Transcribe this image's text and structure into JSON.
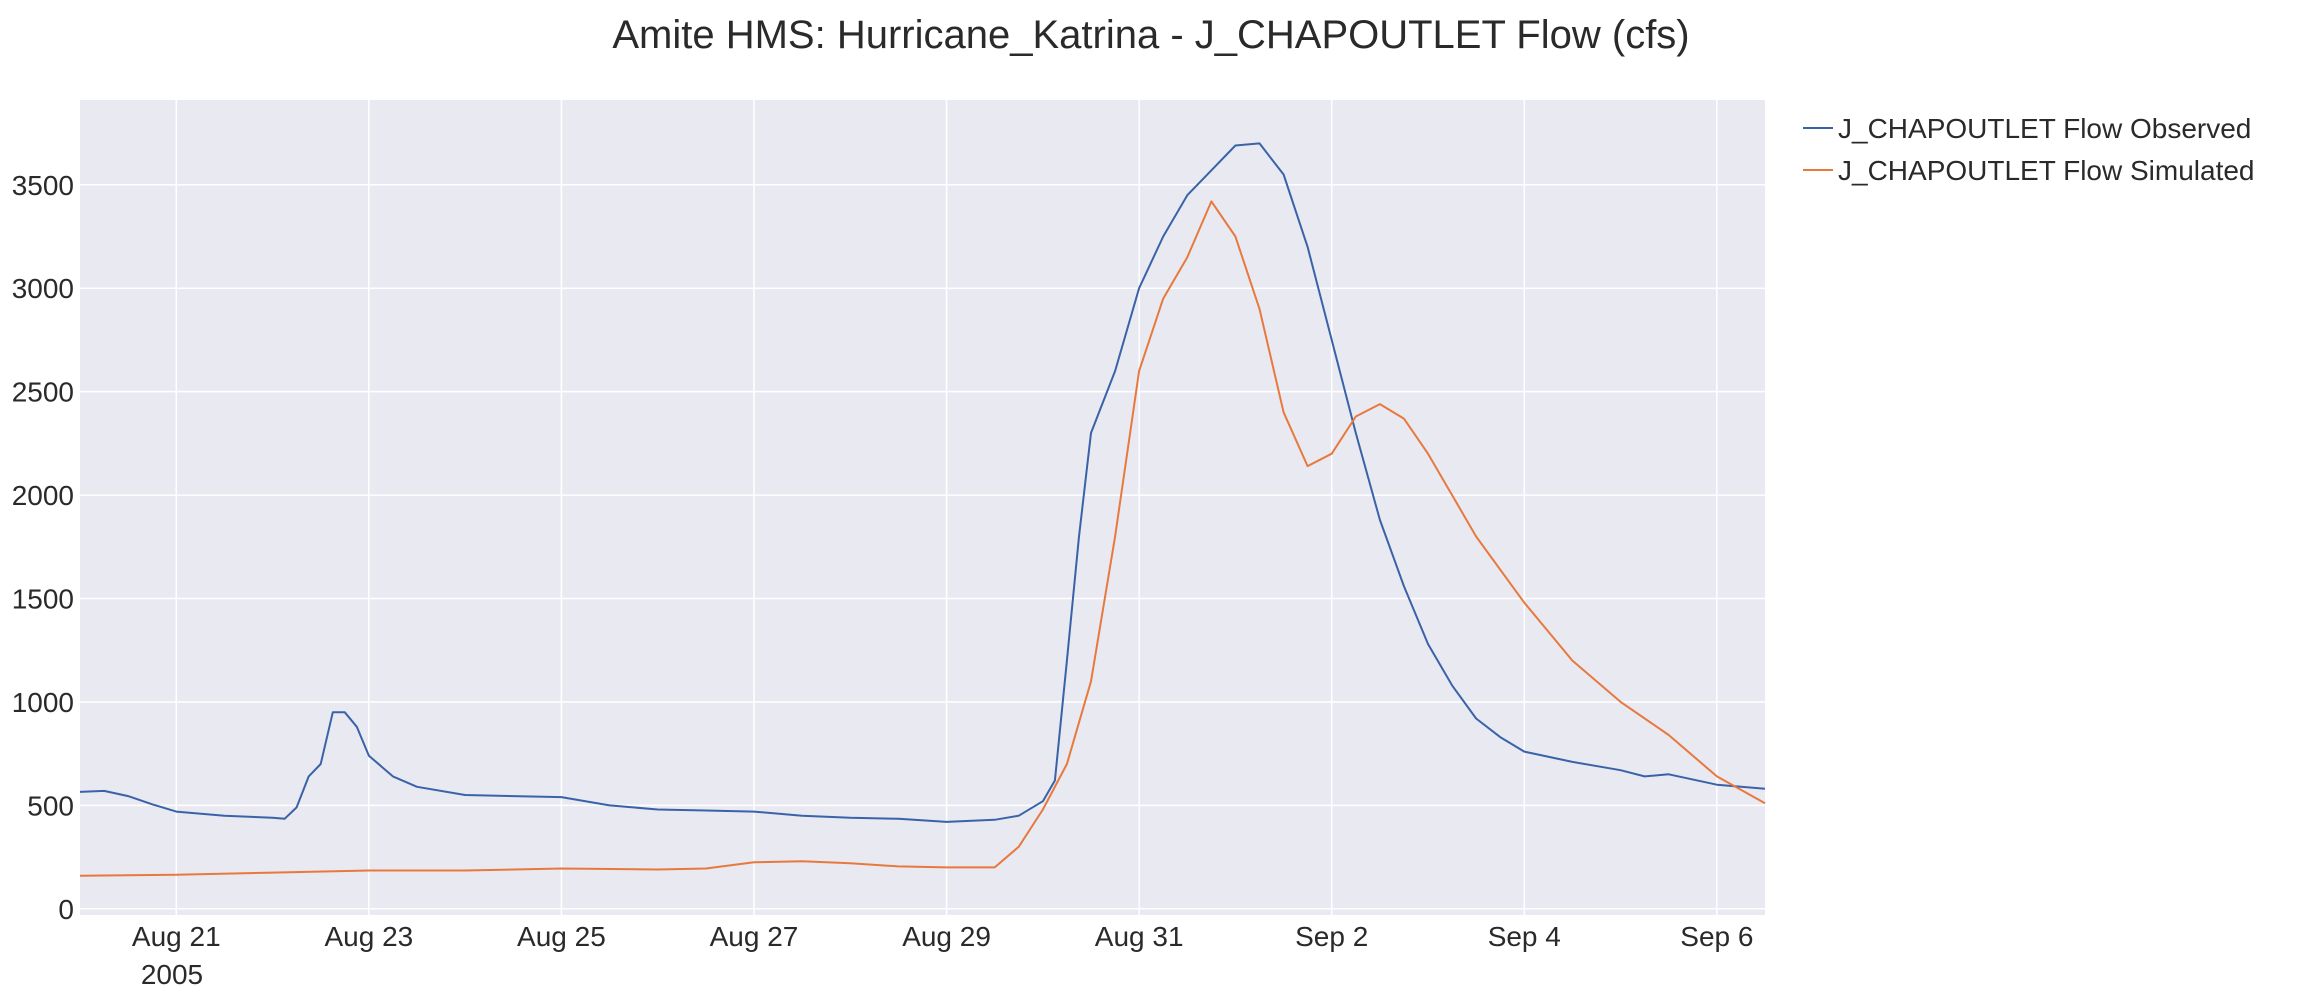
{
  "chart_data": {
    "type": "line",
    "title": "Amite HMS: Hurricane_Katrina - J_CHAPOUTLET Flow (cfs)",
    "xlabel": "",
    "ylabel": "",
    "x_axis_type": "datetime",
    "xlim": [
      "2005-08-20",
      "2005-09-06T12:00"
    ],
    "ylim": [
      -30,
      3910
    ],
    "y_ticks": [
      0,
      500,
      1000,
      1500,
      2000,
      2500,
      3000,
      3500
    ],
    "y_tick_labels": [
      "0",
      "500",
      "1000",
      "1500",
      "2000",
      "2500",
      "3000",
      "3500"
    ],
    "x_ticks": [
      "2005-08-21",
      "2005-08-23",
      "2005-08-25",
      "2005-08-27",
      "2005-08-29",
      "2005-08-31",
      "2005-09-02",
      "2005-09-04",
      "2005-09-06"
    ],
    "x_tick_labels": [
      "Aug 21",
      "Aug 23",
      "Aug 25",
      "Aug 27",
      "Aug 29",
      "Aug 31",
      "Sep 2",
      "Sep 4",
      "Sep 6"
    ],
    "x_year_label": "2005",
    "grid": true,
    "legend_position": "top-right-outside",
    "background_color": "#e9e9f1",
    "grid_color": "#ffffff",
    "series": [
      {
        "name": "J_CHAPOUTLET Flow Observed",
        "color": "#3a62a8",
        "x": [
          "2005-08-20T00:00",
          "2005-08-20T06:00",
          "2005-08-20T12:00",
          "2005-08-20T18:00",
          "2005-08-21T00:00",
          "2005-08-21T12:00",
          "2005-08-22T00:00",
          "2005-08-22T03:00",
          "2005-08-22T06:00",
          "2005-08-22T09:00",
          "2005-08-22T12:00",
          "2005-08-22T15:00",
          "2005-08-22T18:00",
          "2005-08-22T21:00",
          "2005-08-23T00:00",
          "2005-08-23T06:00",
          "2005-08-23T12:00",
          "2005-08-24T00:00",
          "2005-08-24T12:00",
          "2005-08-25T00:00",
          "2005-08-25T12:00",
          "2005-08-26T00:00",
          "2005-08-26T12:00",
          "2005-08-27T00:00",
          "2005-08-27T12:00",
          "2005-08-28T00:00",
          "2005-08-28T12:00",
          "2005-08-29T00:00",
          "2005-08-29T12:00",
          "2005-08-29T18:00",
          "2005-08-30T00:00",
          "2005-08-30T03:00",
          "2005-08-30T06:00",
          "2005-08-30T09:00",
          "2005-08-30T12:00",
          "2005-08-30T18:00",
          "2005-08-31T00:00",
          "2005-08-31T06:00",
          "2005-08-31T12:00",
          "2005-08-31T18:00",
          "2005-09-01T00:00",
          "2005-09-01T06:00",
          "2005-09-01T12:00",
          "2005-09-01T18:00",
          "2005-09-02T00:00",
          "2005-09-02T06:00",
          "2005-09-02T12:00",
          "2005-09-02T18:00",
          "2005-09-03T00:00",
          "2005-09-03T06:00",
          "2005-09-03T12:00",
          "2005-09-03T18:00",
          "2005-09-04T00:00",
          "2005-09-04T12:00",
          "2005-09-05T00:00",
          "2005-09-05T06:00",
          "2005-09-05T12:00",
          "2005-09-06T00:00",
          "2005-09-06T12:00"
        ],
        "y": [
          565,
          570,
          545,
          505,
          470,
          450,
          440,
          435,
          490,
          640,
          700,
          950,
          950,
          880,
          740,
          640,
          590,
          550,
          545,
          540,
          500,
          480,
          475,
          470,
          450,
          440,
          435,
          420,
          430,
          450,
          520,
          620,
          1200,
          1800,
          2300,
          2600,
          3000,
          3250,
          3450,
          3570,
          3690,
          3700,
          3550,
          3200,
          2750,
          2300,
          1880,
          1560,
          1280,
          1080,
          920,
          830,
          760,
          710,
          670,
          640,
          650,
          600,
          580
        ]
      },
      {
        "name": "J_CHAPOUTLET Flow Simulated",
        "color": "#e8793e",
        "x": [
          "2005-08-20T00:00",
          "2005-08-21T00:00",
          "2005-08-22T00:00",
          "2005-08-23T00:00",
          "2005-08-24T00:00",
          "2005-08-25T00:00",
          "2005-08-26T00:00",
          "2005-08-26T12:00",
          "2005-08-27T00:00",
          "2005-08-27T12:00",
          "2005-08-28T00:00",
          "2005-08-28T12:00",
          "2005-08-29T00:00",
          "2005-08-29T12:00",
          "2005-08-29T18:00",
          "2005-08-30T00:00",
          "2005-08-30T06:00",
          "2005-08-30T12:00",
          "2005-08-30T18:00",
          "2005-08-31T00:00",
          "2005-08-31T06:00",
          "2005-08-31T12:00",
          "2005-08-31T18:00",
          "2005-09-01T00:00",
          "2005-09-01T06:00",
          "2005-09-01T12:00",
          "2005-09-01T18:00",
          "2005-09-02T00:00",
          "2005-09-02T06:00",
          "2005-09-02T12:00",
          "2005-09-02T18:00",
          "2005-09-03T00:00",
          "2005-09-03T06:00",
          "2005-09-03T12:00",
          "2005-09-04T00:00",
          "2005-09-04T12:00",
          "2005-09-05T00:00",
          "2005-09-05T12:00",
          "2005-09-06T00:00",
          "2005-09-06T12:00"
        ],
        "y": [
          160,
          165,
          175,
          185,
          185,
          195,
          190,
          195,
          225,
          230,
          220,
          205,
          200,
          200,
          300,
          480,
          700,
          1100,
          1800,
          2600,
          2950,
          3150,
          3420,
          3250,
          2900,
          2400,
          2140,
          2200,
          2380,
          2440,
          2370,
          2200,
          2000,
          1800,
          1480,
          1200,
          1000,
          840,
          640,
          510
        ]
      }
    ]
  }
}
